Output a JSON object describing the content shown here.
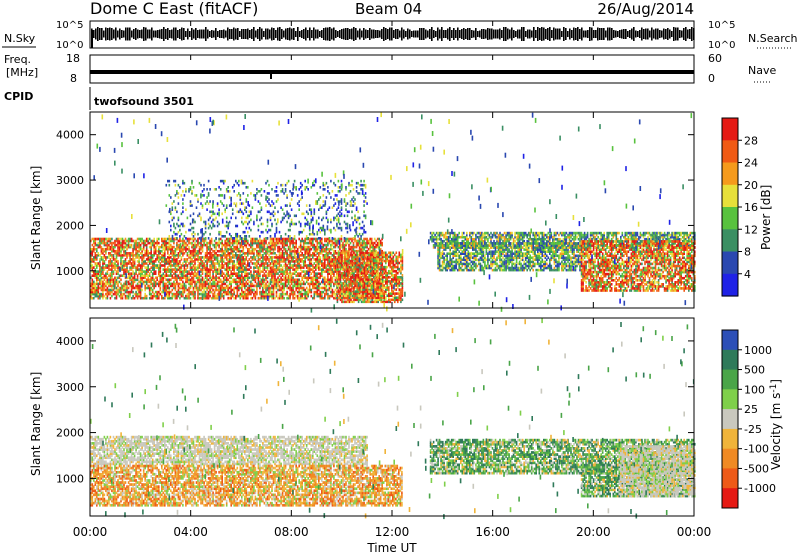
{
  "header": {
    "title": "Dome C East (fitACF)",
    "beam": "Beam 04",
    "date": "26/Aug/2014"
  },
  "noise_panel": {
    "left_label": "N.Sky",
    "right_label": "N.Search",
    "ticks_left": [
      "10^5",
      "10^0"
    ],
    "ticks_right": [
      "10^5",
      "10^0"
    ]
  },
  "freq_panel": {
    "left_label_line1": "Freq.",
    "left_label_line2": "[MHz]",
    "right_label": "Nave",
    "ticks_left": [
      "18",
      "8"
    ],
    "ticks_right": [
      "60",
      "0"
    ]
  },
  "cpid_panel": {
    "label": "CPID",
    "value": "twofsound 3501"
  },
  "colors": {
    "power_scale": [
      "#1f22e6",
      "#2a48b0",
      "#3a8f63",
      "#58c23e",
      "#e7e03a",
      "#f59a1c",
      "#f05a14",
      "#e51a14"
    ],
    "velocity_scale": [
      "#2c4fb7",
      "#2f7a5a",
      "#4aa548",
      "#7fcf4a",
      "#c9c8be",
      "#f0b43a",
      "#f08a24",
      "#ee5a18",
      "#e51a14"
    ]
  },
  "chart_data": [
    {
      "type": "heatmap",
      "title": "",
      "xlabel": "Time UT",
      "ylabel": "Slant Range [km]",
      "x_ticks": [
        "00:00",
        "04:00",
        "08:00",
        "12:00",
        "16:00",
        "20:00",
        "00:00"
      ],
      "y_ticks": [
        "1000",
        "2000",
        "3000",
        "4000"
      ],
      "ylim": [
        180,
        4500
      ],
      "colorbar": {
        "label": "Power [dB]",
        "ticks": [
          "4",
          "8",
          "12",
          "16",
          "20",
          "24",
          "28"
        ],
        "range": [
          0,
          30
        ]
      },
      "echo_regions": [
        {
          "t_start": 0.0,
          "t_end": 11.6,
          "range_low": 380,
          "range_high": 1700,
          "level": "strong"
        },
        {
          "t_start": 9.8,
          "t_end": 12.4,
          "range_low": 300,
          "range_high": 1400,
          "level": "strong"
        },
        {
          "t_start": 13.5,
          "t_end": 24.0,
          "range_low": 1500,
          "range_high": 1850,
          "level": "moderate"
        },
        {
          "t_start": 13.8,
          "t_end": 19.5,
          "range_low": 1000,
          "range_high": 1600,
          "level": "moderate"
        },
        {
          "t_start": 19.5,
          "t_end": 24.0,
          "range_low": 550,
          "range_high": 1650,
          "level": "strong"
        },
        {
          "t_start": 3.0,
          "t_end": 11.0,
          "range_low": 1700,
          "range_high": 3000,
          "level": "scattered"
        }
      ]
    },
    {
      "type": "heatmap",
      "title": "",
      "xlabel": "Time UT",
      "ylabel": "Slant Range [km]",
      "x_ticks": [
        "00:00",
        "04:00",
        "08:00",
        "12:00",
        "16:00",
        "20:00",
        "00:00"
      ],
      "y_ticks": [
        "1000",
        "2000",
        "3000",
        "4000"
      ],
      "ylim": [
        180,
        4500
      ],
      "colorbar": {
        "label": "Velocity [m s^-1]",
        "ticks": [
          "1000",
          "500",
          "100",
          "25",
          "-25",
          "-100",
          "-500",
          "-1000"
        ],
        "range": [
          -1000,
          1000
        ]
      },
      "echo_regions": [
        {
          "t_start": 0.0,
          "t_end": 11.0,
          "range_low": 1300,
          "range_high": 1900,
          "level": "ground-scatter"
        },
        {
          "t_start": 0.0,
          "t_end": 12.4,
          "range_low": 400,
          "range_high": 1300,
          "level": "negative"
        },
        {
          "t_start": 13.5,
          "t_end": 24.0,
          "range_low": 1100,
          "range_high": 1850,
          "level": "positive"
        },
        {
          "t_start": 19.5,
          "t_end": 24.0,
          "range_low": 600,
          "range_high": 1300,
          "level": "positive"
        },
        {
          "t_start": 21.0,
          "t_end": 24.0,
          "range_low": 600,
          "range_high": 1700,
          "level": "ground-scatter"
        }
      ]
    }
  ]
}
